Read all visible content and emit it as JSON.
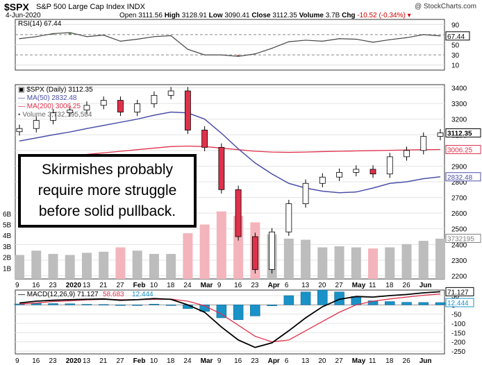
{
  "header": {
    "symbol": "$SPX",
    "name": "S&P 500 Large Cap Index INDX",
    "date": "4-Jun-2020",
    "quote": {
      "open_label": "Open",
      "open": "3111.56",
      "high_label": "High",
      "high": "3128.91",
      "low_label": "Low",
      "low": "3090.41",
      "close_label": "Close",
      "close": "3112.35",
      "volume_label": "Volume",
      "volume": "3.7B",
      "chg_label": "Chg",
      "chg": "-10.52 (-0.34%)"
    },
    "credit": "@ StockCharts.com"
  },
  "callout": {
    "line1": "Skirmishes probably",
    "line2": "require more struggle",
    "line3": "before solid pullback."
  },
  "chart_data": [
    {
      "type": "line",
      "panel": "rsi",
      "label": "RSI(14) 67.44",
      "y_ticks": [
        90,
        70,
        50,
        30,
        10
      ],
      "ylim": [
        0,
        100
      ],
      "last_value_tag": "67.44",
      "x": [
        "Dec 9",
        "Dec 16",
        "Dec 23",
        "Jan 2",
        "Jan 13",
        "Jan 21",
        "Jan 27",
        "Feb 3",
        "Feb 10",
        "Feb 18",
        "Feb 24",
        "Mar 2",
        "Mar 9",
        "Mar 16",
        "Mar 23",
        "Apr 1",
        "Apr 6",
        "Apr 13",
        "Apr 20",
        "Apr 27",
        "May 4",
        "May 11",
        "May 18",
        "May 26",
        "Jun 1",
        "Jun 4"
      ],
      "series": [
        {
          "values": [
            62,
            66,
            72,
            74,
            66,
            69,
            57,
            61,
            66,
            68,
            41,
            30,
            30,
            27,
            32,
            43,
            56,
            59,
            57,
            62,
            61,
            55,
            60,
            64,
            70,
            67.44
          ]
        }
      ]
    },
    {
      "type": "candlestick",
      "panel": "price",
      "label": "$SPX (Daily) 3112.35",
      "legend": [
        "MA(50) 2832.48",
        "MA(200) 3006.25",
        "Volume 3,732,195,584"
      ],
      "y_ticks": [
        3400,
        3300,
        3200,
        3100,
        3000,
        2900,
        2800,
        2700,
        2600,
        2500,
        2400,
        2300,
        2200
      ],
      "ylim": [
        2180,
        3420
      ],
      "volume_ticks": [
        "6B",
        "5B",
        "4B",
        "3B",
        "2B",
        "1B"
      ],
      "value_tags": [
        {
          "label": "3112.35",
          "color": "#000000"
        },
        {
          "label": "3006.25",
          "color": "#e0314b"
        },
        {
          "label": "2832.48",
          "color": "#4b4fa8"
        },
        {
          "label": "3732195",
          "color": "#808080"
        }
      ],
      "x": [
        "Dec 9",
        "Dec 16",
        "Dec 23",
        "Jan 2",
        "Jan 13",
        "Jan 21",
        "Jan 27",
        "Feb 3",
        "Feb 10",
        "Feb 18",
        "Feb 24",
        "Mar 2",
        "Mar 9",
        "Mar 16",
        "Mar 23",
        "Apr 1",
        "Apr 6",
        "Apr 13",
        "Apr 20",
        "Apr 27",
        "May 4",
        "May 11",
        "May 18",
        "May 26",
        "Jun 1",
        "Jun 4"
      ],
      "close": [
        3140,
        3192,
        3240,
        3258,
        3288,
        3320,
        3245,
        3298,
        3352,
        3380,
        3130,
        3020,
        2750,
        2450,
        2240,
        2480,
        2660,
        2790,
        2830,
        2860,
        2880,
        2850,
        2960,
        3000,
        3090,
        3112
      ],
      "ma50": [
        3060,
        3080,
        3100,
        3118,
        3140,
        3160,
        3180,
        3200,
        3225,
        3245,
        3240,
        3200,
        3110,
        3010,
        2920,
        2850,
        2790,
        2760,
        2740,
        2730,
        2735,
        2760,
        2790,
        2800,
        2820,
        2832
      ],
      "ma200": [
        2940,
        2950,
        2958,
        2966,
        2975,
        2985,
        2995,
        3005,
        3015,
        3025,
        3028,
        3025,
        3015,
        3005,
        2995,
        2990,
        2988,
        2990,
        2993,
        2995,
        2997,
        2999,
        3001,
        3003,
        3005,
        3006
      ],
      "volume_b": [
        2.2,
        2.6,
        2.3,
        2.2,
        2.4,
        2.5,
        2.9,
        2.6,
        2.3,
        2.3,
        4.2,
        5.0,
        6.2,
        5.8,
        5.2,
        4.1,
        3.7,
        3.6,
        2.9,
        3.0,
        2.9,
        2.8,
        2.9,
        3.2,
        3.5,
        3.7
      ]
    },
    {
      "type": "line",
      "panel": "macd",
      "label": "MACD(12,26,9) 71.127, 58.683, 12.444",
      "legend": [
        {
          "label": "MACD(12,26,9) 71.127",
          "color": "#000000"
        },
        {
          "label": "58.683",
          "color": "#e0314b"
        },
        {
          "label": "12.444",
          "color": "#1a92c7"
        }
      ],
      "y_ticks": [
        50,
        0,
        -50,
        -100,
        -150,
        -200,
        -250
      ],
      "ylim": [
        -265,
        80
      ],
      "value_tags": [
        {
          "label": "71.127",
          "color": "#000000"
        },
        {
          "label": "12.444",
          "color": "#1a92c7"
        }
      ],
      "x": [
        "Dec 9",
        "Dec 16",
        "Dec 23",
        "Jan 2",
        "Jan 13",
        "Jan 21",
        "Jan 27",
        "Feb 3",
        "Feb 10",
        "Feb 18",
        "Feb 24",
        "Mar 2",
        "Mar 9",
        "Mar 16",
        "Mar 23",
        "Apr 1",
        "Apr 6",
        "Apr 13",
        "Apr 20",
        "Apr 27",
        "May 4",
        "May 11",
        "May 18",
        "May 26",
        "Jun 1",
        "Jun 4"
      ],
      "series": [
        {
          "values": [
            10,
            20,
            25,
            28,
            30,
            32,
            25,
            28,
            34,
            30,
            0,
            -40,
            -120,
            -190,
            -230,
            -205,
            -140,
            -70,
            -10,
            30,
            45,
            42,
            50,
            56,
            65,
            71.127
          ]
        },
        {
          "values": [
            5,
            10,
            18,
            22,
            27,
            30,
            28,
            28,
            30,
            31,
            20,
            -5,
            -50,
            -110,
            -170,
            -200,
            -190,
            -140,
            -90,
            -40,
            0,
            20,
            32,
            42,
            52,
            58.683
          ]
        },
        {
          "values": [
            5,
            10,
            7,
            6,
            3,
            2,
            -3,
            0,
            4,
            -1,
            -20,
            -35,
            -70,
            -80,
            -60,
            -5,
            50,
            70,
            80,
            70,
            45,
            22,
            18,
            14,
            13,
            12.444
          ]
        }
      ]
    }
  ],
  "x_axis_labels": [
    "9",
    "16",
    "23",
    "2020",
    "13",
    "21",
    "27",
    "Feb",
    "10",
    "18",
    "24",
    "Mar",
    "9",
    "16",
    "23",
    "Apr",
    "6",
    "13",
    "20",
    "27",
    "May",
    "11",
    "18",
    "26",
    "Jun"
  ],
  "x_axis_bold": [
    "2020",
    "Feb",
    "Mar",
    "Apr",
    "May",
    "Jun"
  ],
  "colors": {
    "up": "#ffffff",
    "down": "#e0314b",
    "ma50": "#4b4fa8",
    "ma200": "#e0314b",
    "vol_up": "#bdbdbd",
    "vol_down": "#f4b4bb",
    "hist": "#1a92c7",
    "rsi_hi": "#4a8a3c",
    "rsi_lo": "#a8504a"
  }
}
